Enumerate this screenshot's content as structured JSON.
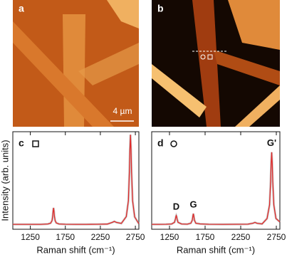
{
  "images": [
    {
      "panel_label": "a",
      "scale_bar": "4 µm"
    },
    {
      "panel_label": "b"
    }
  ],
  "chart_data": [
    {
      "type": "line",
      "panel_label": "c",
      "ylabel": "Intensity (arb. units)",
      "xlabel": "Raman shift (cm⁻¹)",
      "xlim": [
        1000,
        2800
      ],
      "ylim": [
        0,
        1
      ],
      "xticks": [
        1250,
        1750,
        2250,
        2750
      ],
      "x": [
        1000,
        1100,
        1200,
        1300,
        1400,
        1500,
        1540,
        1560,
        1570,
        1576,
        1582,
        1588,
        1594,
        1604,
        1620,
        1660,
        1750,
        1900,
        2050,
        2200,
        2350,
        2420,
        2450,
        2480,
        2550,
        2620,
        2650,
        2665,
        2672,
        2680,
        2688,
        2695,
        2710,
        2740,
        2800
      ],
      "series": [
        {
          "color": "#e02a2a",
          "values": [
            0.05,
            0.05,
            0.05,
            0.05,
            0.05,
            0.054,
            0.063,
            0.089,
            0.135,
            0.186,
            0.22,
            0.186,
            0.135,
            0.089,
            0.065,
            0.054,
            0.051,
            0.05,
            0.05,
            0.051,
            0.053,
            0.07,
            0.08,
            0.07,
            0.06,
            0.13,
            0.293,
            0.593,
            0.818,
            0.97,
            0.818,
            0.593,
            0.293,
            0.126,
            0.056
          ]
        }
      ]
    },
    {
      "type": "line",
      "panel_label": "d",
      "xlabel": "Raman shift (cm⁻¹)",
      "xlim": [
        1000,
        2800
      ],
      "ylim": [
        0,
        1
      ],
      "xticks": [
        1250,
        1750,
        2250,
        2750
      ],
      "x": [
        1000,
        1100,
        1200,
        1280,
        1320,
        1335,
        1340,
        1345,
        1350,
        1355,
        1370,
        1420,
        1500,
        1550,
        1570,
        1579,
        1585,
        1591,
        1600,
        1620,
        1680,
        1800,
        2000,
        2200,
        2350,
        2420,
        2450,
        2480,
        2550,
        2620,
        2655,
        2670,
        2677,
        2685,
        2693,
        2700,
        2715,
        2745,
        2800
      ],
      "series": [
        {
          "color": "#e02a2a",
          "values": [
            0.05,
            0.05,
            0.051,
            0.054,
            0.071,
            0.11,
            0.13,
            0.14,
            0.13,
            0.11,
            0.071,
            0.054,
            0.052,
            0.062,
            0.093,
            0.138,
            0.16,
            0.138,
            0.093,
            0.062,
            0.055,
            0.051,
            0.05,
            0.051,
            0.052,
            0.061,
            0.07,
            0.061,
            0.055,
            0.11,
            0.25,
            0.49,
            0.67,
            0.79,
            0.67,
            0.49,
            0.25,
            0.11,
            0.075
          ]
        }
      ],
      "annotations": [
        {
          "text": "D",
          "x": 1345
        },
        {
          "text": "G",
          "x": 1585
        },
        {
          "text": "G'",
          "x": 2685
        }
      ]
    }
  ]
}
